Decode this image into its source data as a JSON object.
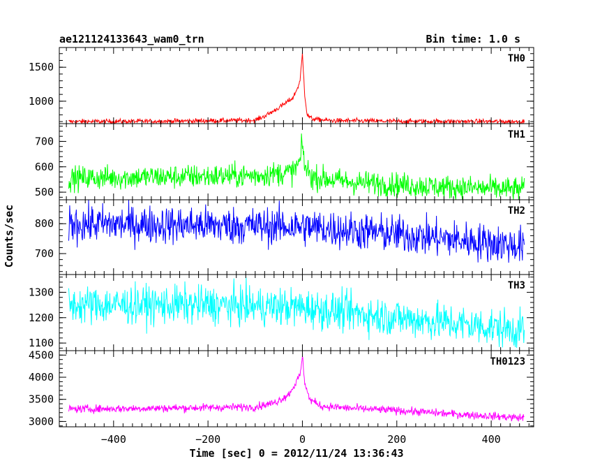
{
  "chart_data": {
    "type": "line",
    "title": "ae121124133643_wam0_trn",
    "bin_time_label": "Bin time: 1.0 s",
    "xlabel": "Time [sec] 0 = 2012/11/24 13:36:43",
    "ylabel": "Counts/sec",
    "xlim": [
      -515,
      490
    ],
    "x_ticks": [
      -400,
      -200,
      0,
      200,
      400
    ],
    "x_tick_labels": [
      "−400",
      "−200",
      "0",
      "200",
      "400"
    ],
    "x_range": [
      -495,
      470
    ],
    "panels": [
      {
        "name": "TH0",
        "color": "#ff0000",
        "ylim": [
          670,
          1790
        ],
        "yticks": [
          1000,
          1500
        ],
        "ytick_labels": [
          "1000",
          "1500"
        ],
        "series": [
          {
            "x": [
              -495,
              -300,
              -100,
              -80,
              -60,
              -40,
              -20,
              -10,
              -5,
              0,
              5,
              10,
              20,
              60,
              200,
              470
            ],
            "y": [
              700,
              705,
              720,
              780,
              860,
              950,
              1050,
              1200,
              1300,
              1700,
              1100,
              800,
              740,
              715,
              705,
              700
            ]
          }
        ],
        "noise": 18
      },
      {
        "name": "TH1",
        "color": "#00ff00",
        "ylim": [
          470,
          770
        ],
        "yticks": [
          500,
          600,
          700
        ],
        "ytick_labels": [
          "500",
          "600",
          "700"
        ],
        "series": [
          {
            "x": [
              -495,
              -300,
              -100,
              -20,
              -5,
              0,
              5,
              20,
              100,
              300,
              470
            ],
            "y": [
              555,
              560,
              565,
              580,
              620,
              690,
              600,
              560,
              540,
              520,
              510
            ]
          }
        ],
        "noise": 24
      },
      {
        "name": "TH2",
        "color": "#0000ff",
        "ylim": [
          630,
          880
        ],
        "yticks": [
          700,
          800
        ],
        "ytick_labels": [
          "700",
          "800"
        ],
        "series": [
          {
            "x": [
              -495,
              -200,
              0,
              200,
              470
            ],
            "y": [
              800,
              795,
              790,
              765,
              725
            ]
          }
        ],
        "noise": 32
      },
      {
        "name": "TH3",
        "color": "#00ffff",
        "ylim": [
          1070,
          1370
        ],
        "yticks": [
          1100,
          1200,
          1300
        ],
        "ytick_labels": [
          "1100",
          "1200",
          "1300"
        ],
        "series": [
          {
            "x": [
              -495,
              -200,
              0,
              200,
              470
            ],
            "y": [
              1250,
              1250,
              1240,
              1200,
              1150
            ]
          }
        ],
        "noise": 38
      },
      {
        "name": "TH0123",
        "color": "#ff00ff",
        "ylim": [
          2880,
          4600
        ],
        "yticks": [
          3000,
          3500,
          4000,
          4500
        ],
        "ytick_labels": [
          "3000",
          "3500",
          "4000",
          "4500"
        ],
        "series": [
          {
            "x": [
              -495,
              -300,
              -100,
              -60,
              -30,
              -15,
              -5,
              0,
              5,
              15,
              40,
              100,
              200,
              350,
              470
            ],
            "y": [
              3280,
              3300,
              3330,
              3420,
              3600,
              3850,
              4050,
              4450,
              3900,
              3500,
              3350,
              3300,
              3250,
              3150,
              3080
            ]
          }
        ],
        "noise": 45
      }
    ]
  }
}
